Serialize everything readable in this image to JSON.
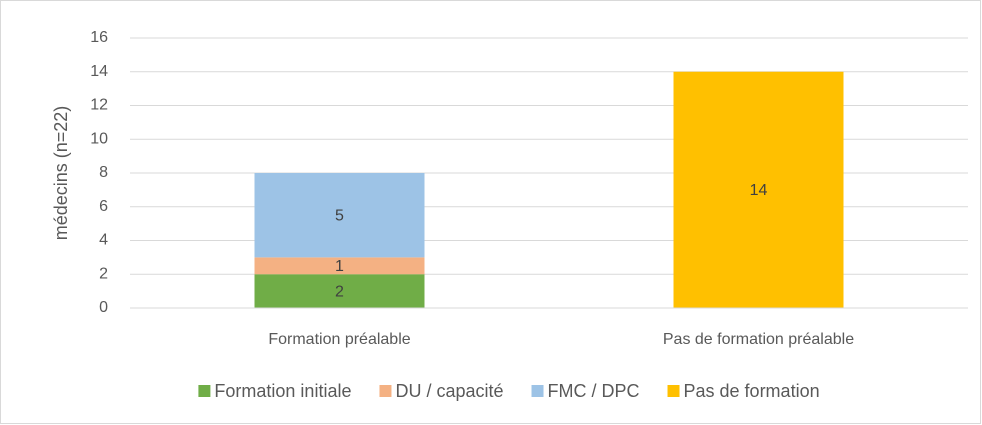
{
  "chart_data": {
    "type": "stacked_bar",
    "y_label": "médecins (n=22)",
    "categories": [
      "Formation préalable",
      "Pas de formation préalable"
    ],
    "series": [
      {
        "name": "Formation initiale",
        "color": "#70ad47",
        "values": [
          2,
          null
        ]
      },
      {
        "name": "DU / capacité",
        "color": "#f4b183",
        "values": [
          1,
          null
        ]
      },
      {
        "name": "FMC / DPC",
        "color": "#9dc3e6",
        "values": [
          5,
          null
        ]
      },
      {
        "name": "Pas de formation",
        "color": "#ffc000",
        "values": [
          null,
          14
        ]
      }
    ],
    "ylim": [
      0,
      16
    ],
    "yticks": [
      0,
      2,
      4,
      6,
      8,
      10,
      12,
      14,
      16
    ],
    "grid": true,
    "legend": "bottom"
  }
}
